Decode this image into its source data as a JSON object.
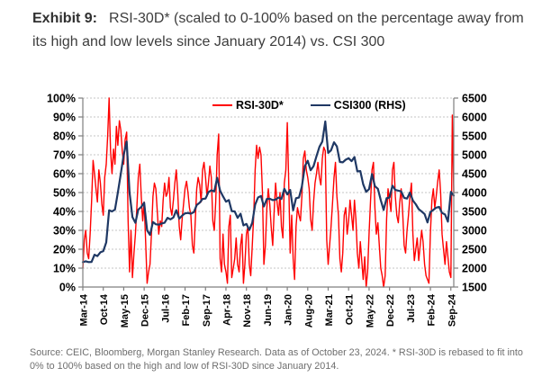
{
  "title": {
    "label": "Exhibit 9:",
    "text": "RSI-30D* (scaled to 0-100% based on the percentage away from its high and low levels since January 2014) vs. CSI 300"
  },
  "source": {
    "text": "Source: CEIC, Bloomberg, Morgan Stanley Research. Data as of October 23, 2024. * RSI-30D is rebased to fit into 0% to 100% based on the high and low of RSI-30D since January 2014."
  },
  "colors": {
    "rsi_red": "#ff0000",
    "csi_navy": "#1f3864",
    "gridline": "#c6c6c6",
    "axis": "#7f7f7f",
    "tick_text": "#000000",
    "title_text": "#3d3d3d",
    "source_text": "#6e6e6e"
  },
  "chart_data": {
    "type": "line",
    "title": "RSI-30D* (scaled to 0-100%) vs. CSI 300",
    "grid": "horizontal-dotted",
    "legend_position": "top-inside",
    "x_start": "Mar-14",
    "x_end": "Oct-24",
    "x_range_months": 127,
    "x_tick_interval_months": 7,
    "x_tick_labels": [
      "Mar-14",
      "Oct-14",
      "May-15",
      "Dec-15",
      "Jul-16",
      "Feb-17",
      "Sep-17",
      "Apr-18",
      "Nov-18",
      "Jun-19",
      "Jan-20",
      "Aug-20",
      "Mar-21",
      "Oct-21",
      "May-22",
      "Dec-22",
      "Jul-23",
      "Feb-24",
      "Sep-24"
    ],
    "y_left": {
      "min": 0,
      "max": 100,
      "step": 10,
      "ticks": [
        "100%",
        "90%",
        "80%",
        "70%",
        "60%",
        "50%",
        "40%",
        "30%",
        "20%",
        "10%",
        "0%"
      ]
    },
    "y_right": {
      "min": 1500,
      "max": 6500,
      "step": 500,
      "ticks": [
        "6500",
        "6000",
        "5500",
        "5000",
        "4500",
        "4000",
        "3500",
        "3000",
        "2500",
        "2000",
        "1500"
      ]
    },
    "series": [
      {
        "name": "RSI-30D*",
        "axis": "left",
        "color": "#ff0000",
        "stroke_width": 1.4,
        "x_step_months": 0.5,
        "values": [
          10,
          25,
          30,
          18,
          15,
          28,
          45,
          67,
          60,
          52,
          45,
          62,
          55,
          44,
          38,
          58,
          65,
          80,
          100,
          72,
          60,
          73,
          65,
          85,
          75,
          88,
          83,
          72,
          65,
          78,
          82,
          35,
          8,
          30,
          5,
          18,
          28,
          42,
          58,
          65,
          48,
          35,
          45,
          25,
          2,
          8,
          12,
          28,
          48,
          55,
          52,
          40,
          28,
          35,
          32,
          46,
          55,
          48,
          50,
          58,
          42,
          38,
          46,
          55,
          62,
          50,
          32,
          25,
          36,
          44,
          52,
          56,
          50,
          42,
          38,
          22,
          18,
          35,
          52,
          58,
          54,
          45,
          62,
          66,
          58,
          48,
          55,
          64,
          58,
          35,
          30,
          45,
          70,
          81,
          15,
          8,
          28,
          12,
          8,
          2,
          32,
          38,
          5,
          10,
          15,
          26,
          12,
          8,
          22,
          28,
          2,
          12,
          28,
          32,
          12,
          6,
          22,
          38,
          62,
          75,
          68,
          74,
          70,
          50,
          12,
          22,
          42,
          52,
          44,
          32,
          22,
          40,
          55,
          45,
          38,
          50,
          32,
          26,
          55,
          62,
          87,
          55,
          18,
          38,
          15,
          4,
          32,
          42,
          38,
          35,
          48,
          68,
          72,
          62,
          58,
          52,
          36,
          30,
          45,
          55,
          60,
          66,
          58,
          54,
          68,
          74,
          72,
          25,
          12,
          22,
          32,
          45,
          58,
          66,
          48,
          38,
          15,
          8,
          18,
          38,
          42,
          28,
          35,
          46,
          38,
          30,
          46,
          36,
          18,
          10,
          24,
          14,
          4,
          16,
          0,
          8,
          28,
          45,
          62,
          66,
          42,
          28,
          34,
          22,
          10,
          6,
          0,
          6,
          36,
          52,
          46,
          40,
          62,
          66,
          48,
          38,
          34,
          45,
          52,
          40,
          22,
          18,
          30,
          38,
          48,
          55,
          28,
          14,
          20,
          26,
          14,
          22,
          30,
          24,
          12,
          6,
          4,
          2,
          28,
          46,
          52,
          42,
          48,
          56,
          62,
          50,
          28,
          20,
          12,
          24,
          16,
          8,
          5,
          91,
          50
        ]
      },
      {
        "name": "CSI300 (RHS)",
        "axis": "right",
        "color": "#1f3864",
        "stroke_width": 2.2,
        "x_step_months": 1,
        "values": [
          2160,
          2180,
          2160,
          2165,
          2355,
          2320,
          2420,
          2450,
          2680,
          3530,
          3500,
          3550,
          4000,
          4500,
          5000,
          5350,
          4000,
          3350,
          3200,
          3550,
          3620,
          3730,
          3000,
          2880,
          3220,
          3160,
          3150,
          3180,
          3200,
          3330,
          3290,
          3340,
          3530,
          3310,
          3390,
          3450,
          3460,
          3440,
          3480,
          3670,
          3730,
          3830,
          3840,
          4010,
          4060,
          4030,
          4390,
          4050,
          3900,
          3760,
          3800,
          3510,
          3500,
          3330,
          3440,
          3130,
          3170,
          3010,
          3200,
          3680,
          3870,
          3910,
          3630,
          3830,
          3835,
          3800,
          3815,
          3870,
          3830,
          4100,
          3950,
          4070,
          3530,
          3850,
          3870,
          4160,
          4700,
          4840,
          4590,
          4700,
          4960,
          5210,
          5350,
          5880,
          5050,
          5120,
          5330,
          5220,
          4810,
          4800,
          4870,
          4910,
          4830,
          4940,
          4560,
          4570,
          4220,
          4020,
          4090,
          4490,
          4170,
          4100,
          3800,
          3540,
          3850,
          3870,
          4180,
          4070,
          4050,
          4030,
          3860,
          3840,
          4000,
          3790,
          3690,
          3560,
          3500,
          3430,
          3210,
          3480,
          3540,
          3600,
          3620,
          3460,
          3420,
          3230,
          4020,
          3920
        ]
      }
    ]
  }
}
